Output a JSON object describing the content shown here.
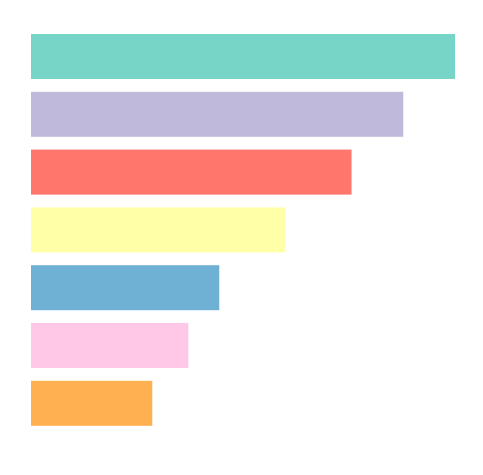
{
  "chart_data": {
    "type": "bar",
    "orientation": "horizontal",
    "title": "",
    "xlabel": "",
    "ylabel": "",
    "categories": [
      "",
      "",
      "",
      "",
      "",
      "",
      ""
    ],
    "values": [
      100,
      87.8,
      75.6,
      59.9,
      44.4,
      37.1,
      28.6
    ],
    "colors": [
      "#76d5c7",
      "#bfb9dc",
      "#ff766d",
      "#ffffa8",
      "#6fb0d5",
      "#ffc8e6",
      "#ffb152"
    ],
    "xlim": [
      0,
      100
    ],
    "grid": false,
    "legend": "none",
    "axes_visible": false
  }
}
